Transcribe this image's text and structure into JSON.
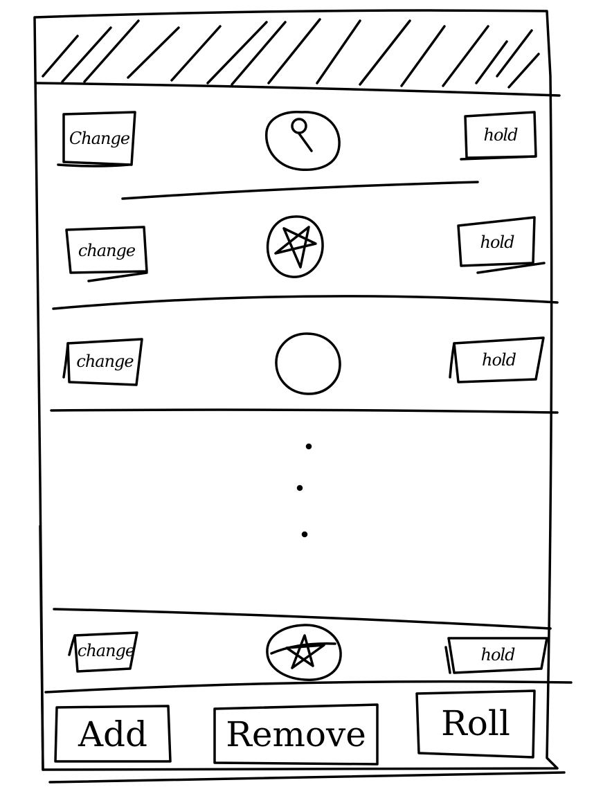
{
  "rows": [
    {
      "change_label": "Change",
      "hold_label": "hold",
      "die_icon": "keyhole-icon"
    },
    {
      "change_label": "change",
      "hold_label": "hold",
      "die_icon": "pentagram-icon"
    },
    {
      "change_label": "change",
      "hold_label": "hold",
      "die_icon": "blank-circle-icon"
    },
    {
      "change_label": "change",
      "hold_label": "hold",
      "die_icon": "star-icon"
    }
  ],
  "list_overflow_indicator": "vertical-ellipsis",
  "toolbar": {
    "add_label": "Add",
    "remove_label": "Remove",
    "roll_label": "Roll"
  }
}
